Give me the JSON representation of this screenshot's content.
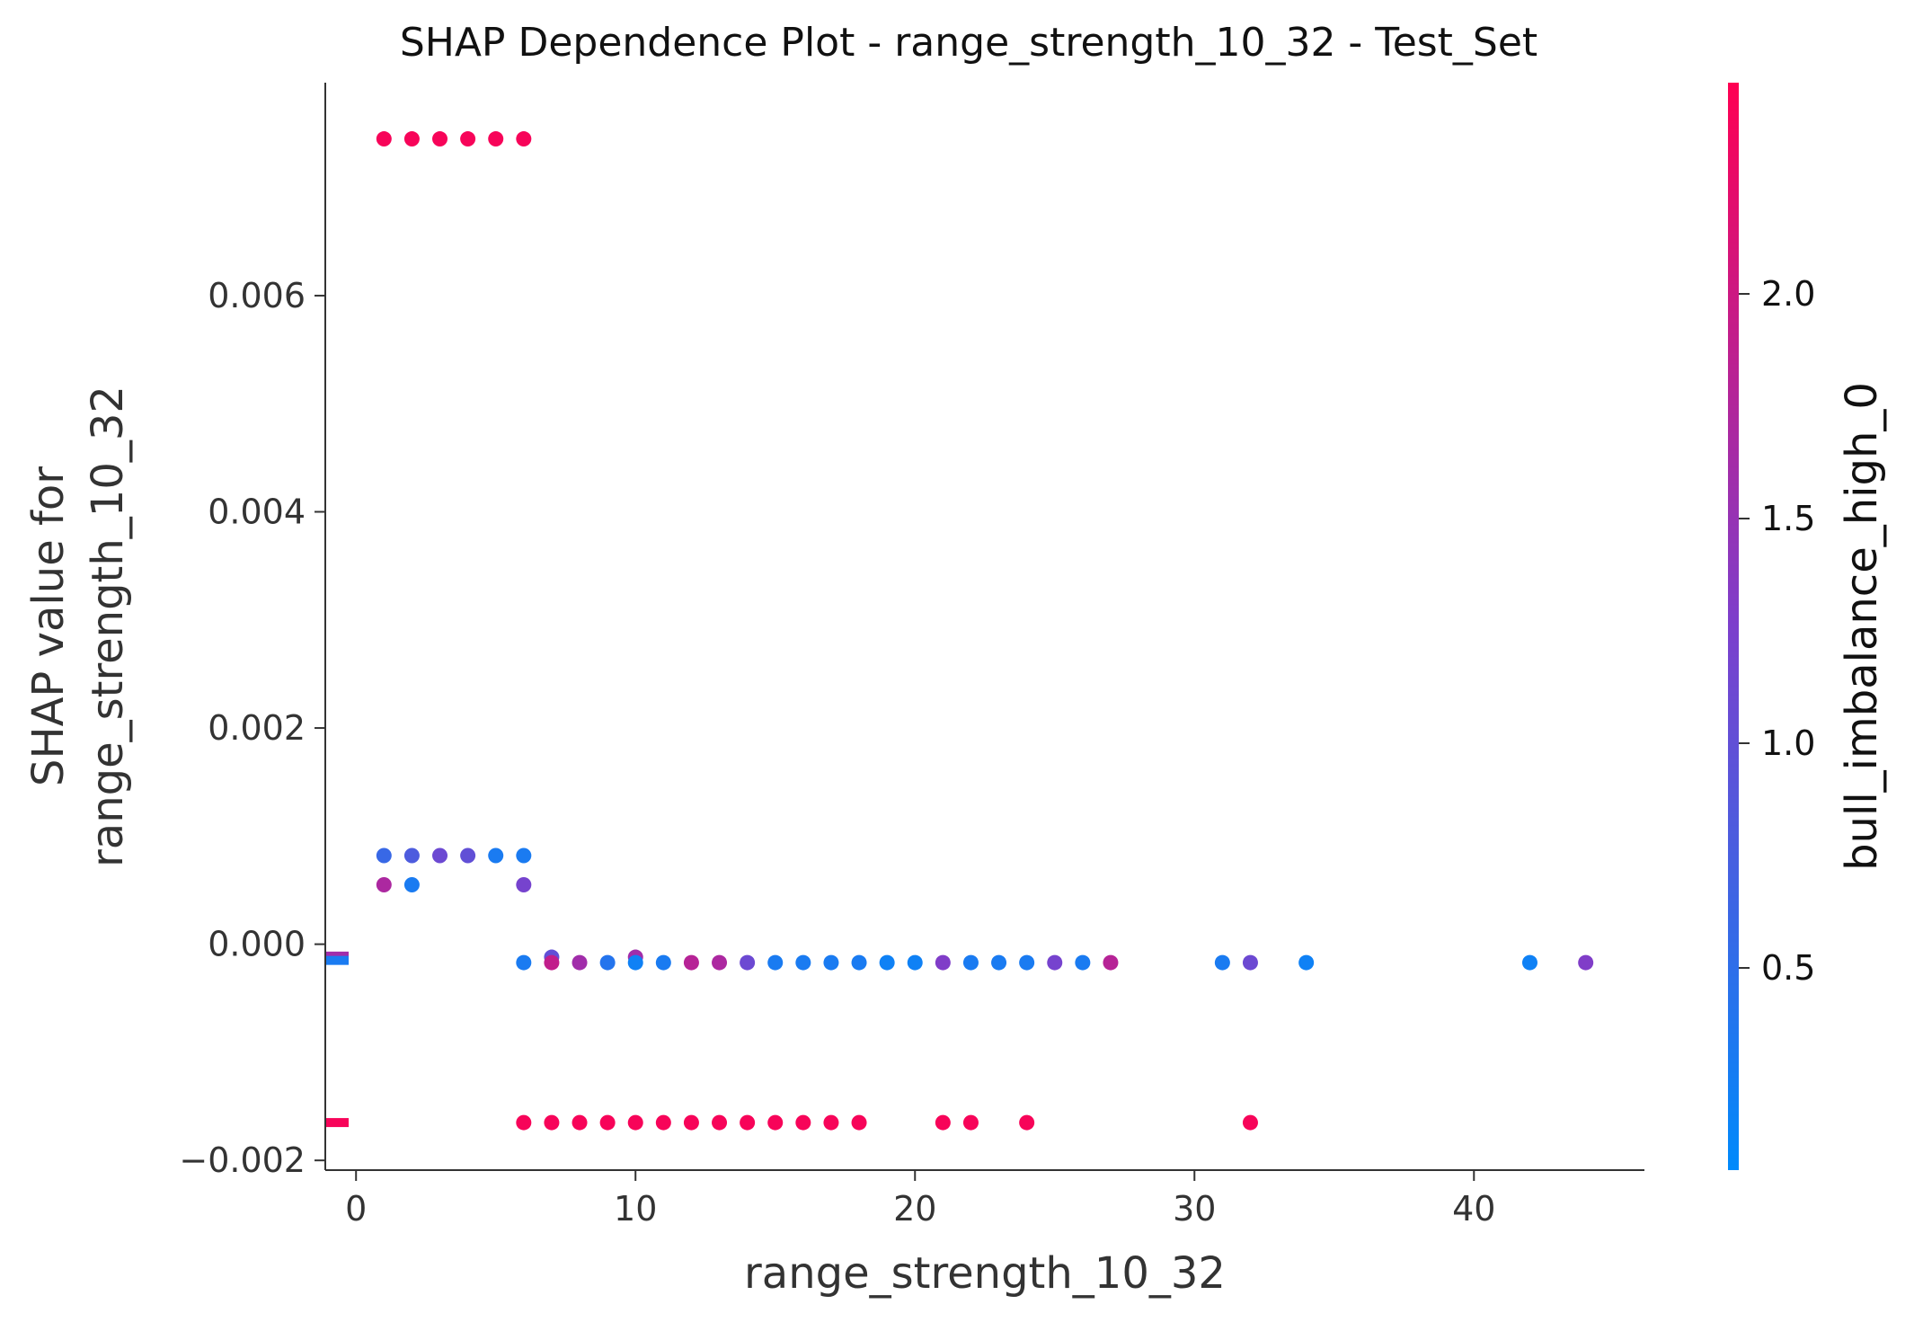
{
  "chart_data": {
    "type": "scatter",
    "title": "SHAP Dependence Plot - range_strength_10_32 - Test_Set",
    "xlabel": "range_strength_10_32",
    "ylabel": [
      "SHAP value for",
      "range_strength_10_32"
    ],
    "xlim": [
      -1.1,
      46.1
    ],
    "ylim": [
      -0.00209,
      0.00797
    ],
    "xticks": [
      0,
      10,
      20,
      30,
      40
    ],
    "xtick_labels": [
      "0",
      "10",
      "20",
      "30",
      "40"
    ],
    "yticks": [
      -0.002,
      0.0,
      0.002,
      0.004,
      0.006
    ],
    "ytick_labels": [
      "−0.002",
      "0.000",
      "0.002",
      "0.004",
      "0.006"
    ],
    "colorbar": {
      "label": "bull_imbalance_high_0",
      "range": [
        0.05,
        2.47
      ],
      "ticks": [
        0.5,
        1.0,
        1.5,
        2.0
      ],
      "tick_labels": [
        "0.5",
        "1.0",
        "1.5",
        "2.0"
      ],
      "colors": [
        "#008afb",
        "#7c3fcc",
        "#ff0052"
      ]
    },
    "missing_markers": [
      {
        "y": -0.00011,
        "c": 1.6
      },
      {
        "y": -0.00015,
        "c": 0.3
      },
      {
        "y": -0.00165,
        "c": 2.4
      }
    ],
    "points": [
      {
        "x": 1,
        "y": 0.00745,
        "c": 2.4
      },
      {
        "x": 2,
        "y": 0.00745,
        "c": 2.4
      },
      {
        "x": 3,
        "y": 0.00745,
        "c": 2.4
      },
      {
        "x": 4,
        "y": 0.00745,
        "c": 2.4
      },
      {
        "x": 5,
        "y": 0.00745,
        "c": 2.4
      },
      {
        "x": 6,
        "y": 0.00745,
        "c": 2.4
      },
      {
        "x": 1,
        "y": 0.00082,
        "c": 0.6
      },
      {
        "x": 2,
        "y": 0.00082,
        "c": 0.8
      },
      {
        "x": 3,
        "y": 0.00082,
        "c": 1.1
      },
      {
        "x": 4,
        "y": 0.00082,
        "c": 1.0
      },
      {
        "x": 5,
        "y": 0.00082,
        "c": 0.3
      },
      {
        "x": 6,
        "y": 0.00082,
        "c": 0.3
      },
      {
        "x": 1,
        "y": 0.00055,
        "c": 1.7
      },
      {
        "x": 2,
        "y": 0.00055,
        "c": 0.3
      },
      {
        "x": 6,
        "y": 0.00055,
        "c": 1.2
      },
      {
        "x": 6,
        "y": -0.00017,
        "c": 0.3
      },
      {
        "x": 7,
        "y": -0.00012,
        "c": 1.0
      },
      {
        "x": 7,
        "y": -0.00017,
        "c": 1.9
      },
      {
        "x": 8,
        "y": -0.00017,
        "c": 1.6
      },
      {
        "x": 9,
        "y": -0.00017,
        "c": 0.4
      },
      {
        "x": 10,
        "y": -0.00012,
        "c": 1.6
      },
      {
        "x": 10,
        "y": -0.00017,
        "c": 0.2
      },
      {
        "x": 11,
        "y": -0.00017,
        "c": 0.3
      },
      {
        "x": 12,
        "y": -0.00017,
        "c": 1.8
      },
      {
        "x": 13,
        "y": -0.00017,
        "c": 1.7
      },
      {
        "x": 14,
        "y": -0.00017,
        "c": 1.1
      },
      {
        "x": 15,
        "y": -0.00017,
        "c": 0.3
      },
      {
        "x": 16,
        "y": -0.00017,
        "c": 0.3
      },
      {
        "x": 17,
        "y": -0.00017,
        "c": 0.3
      },
      {
        "x": 18,
        "y": -0.00017,
        "c": 0.3
      },
      {
        "x": 19,
        "y": -0.00017,
        "c": 0.2
      },
      {
        "x": 20,
        "y": -0.00017,
        "c": 0.2
      },
      {
        "x": 21,
        "y": -0.00017,
        "c": 1.3
      },
      {
        "x": 22,
        "y": -0.00017,
        "c": 0.3
      },
      {
        "x": 23,
        "y": -0.00017,
        "c": 0.3
      },
      {
        "x": 24,
        "y": -0.00017,
        "c": 0.3
      },
      {
        "x": 25,
        "y": -0.00017,
        "c": 1.2
      },
      {
        "x": 26,
        "y": -0.00017,
        "c": 0.3
      },
      {
        "x": 27,
        "y": -0.00017,
        "c": 1.8
      },
      {
        "x": 31,
        "y": -0.00017,
        "c": 0.3
      },
      {
        "x": 32,
        "y": -0.00017,
        "c": 1.1
      },
      {
        "x": 34,
        "y": -0.00017,
        "c": 0.2
      },
      {
        "x": 42,
        "y": -0.00017,
        "c": 0.2
      },
      {
        "x": 44,
        "y": -0.00017,
        "c": 1.3
      },
      {
        "x": 6,
        "y": -0.00165,
        "c": 2.4
      },
      {
        "x": 7,
        "y": -0.00165,
        "c": 2.4
      },
      {
        "x": 8,
        "y": -0.00165,
        "c": 2.4
      },
      {
        "x": 9,
        "y": -0.00165,
        "c": 2.4
      },
      {
        "x": 10,
        "y": -0.00165,
        "c": 2.4
      },
      {
        "x": 11,
        "y": -0.00165,
        "c": 2.4
      },
      {
        "x": 12,
        "y": -0.00165,
        "c": 2.4
      },
      {
        "x": 13,
        "y": -0.00165,
        "c": 2.4
      },
      {
        "x": 14,
        "y": -0.00165,
        "c": 2.4
      },
      {
        "x": 15,
        "y": -0.00165,
        "c": 2.4
      },
      {
        "x": 16,
        "y": -0.00165,
        "c": 2.4
      },
      {
        "x": 17,
        "y": -0.00165,
        "c": 2.4
      },
      {
        "x": 18,
        "y": -0.00165,
        "c": 2.4
      },
      {
        "x": 21,
        "y": -0.00165,
        "c": 2.4
      },
      {
        "x": 22,
        "y": -0.00165,
        "c": 2.4
      },
      {
        "x": 24,
        "y": -0.00165,
        "c": 2.4
      },
      {
        "x": 32,
        "y": -0.00165,
        "c": 2.4
      }
    ]
  }
}
